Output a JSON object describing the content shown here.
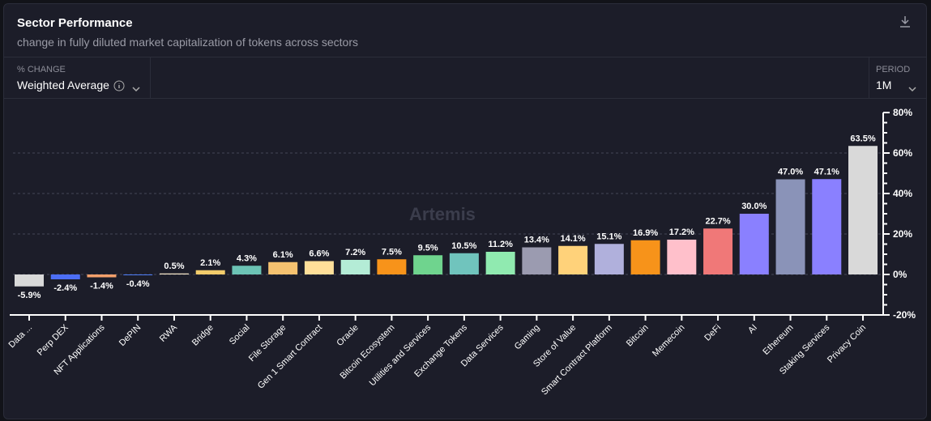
{
  "header": {
    "title": "Sector Performance",
    "subtitle": "change in fully diluted market capitalization of tokens across sectors",
    "download_icon": "download-icon"
  },
  "controls": {
    "change": {
      "label": "% CHANGE",
      "value": "Weighted Average"
    },
    "period": {
      "label": "PERIOD",
      "value": "1M"
    }
  },
  "watermark": "Artemis",
  "chart_data": {
    "type": "bar",
    "title": "",
    "xlabel": "",
    "ylabel": "",
    "ylim": [
      -20,
      80
    ],
    "yticks": [
      -20,
      0,
      20,
      40,
      60,
      80
    ],
    "ytick_labels": [
      "-20%",
      "0%",
      "20%",
      "40%",
      "60%",
      "80%"
    ],
    "grid": true,
    "categories": [
      "Data ...",
      "Perp DEX",
      "NFT Applications",
      "DePIN",
      "RWA",
      "Bridge",
      "Social",
      "File Storage",
      "Gen 1 Smart Contract",
      "Oracle",
      "Bitcoin Ecosystem",
      "Utilities and Services",
      "Exchange Tokens",
      "Data Services",
      "Gaming",
      "Store of Value",
      "Smart Contract Platform",
      "Bitcoin",
      "Memecoin",
      "DeFi",
      "AI",
      "Ethereum",
      "Staking Services",
      "Privacy Coin"
    ],
    "values": [
      -5.9,
      -2.4,
      -1.4,
      -0.4,
      0.5,
      2.1,
      4.3,
      6.1,
      6.6,
      7.2,
      7.5,
      9.5,
      10.5,
      11.2,
      13.4,
      14.1,
      15.1,
      16.9,
      17.2,
      22.7,
      30.0,
      47.0,
      47.1,
      63.5
    ],
    "labels": [
      "-5.9%",
      "-2.4%",
      "-1.4%",
      "-0.4%",
      "0.5%",
      "2.1%",
      "4.3%",
      "6.1%",
      "6.6%",
      "7.2%",
      "7.5%",
      "9.5%",
      "10.5%",
      "11.2%",
      "13.4%",
      "14.1%",
      "15.1%",
      "16.9%",
      "17.2%",
      "22.7%",
      "30.0%",
      "47.0%",
      "47.1%",
      "63.5%"
    ],
    "colors": [
      "#d9d9d9",
      "#4c6ef5",
      "#f4a06b",
      "#4c7cf5",
      "#f5e6c8",
      "#f2cc6b",
      "#6cc3b5",
      "#f5c270",
      "#ffdf99",
      "#b4ecd6",
      "#f7931a",
      "#6fd48e",
      "#70c4bd",
      "#90eab0",
      "#9b9bb0",
      "#ffd27a",
      "#b0b0dc",
      "#f7931a",
      "#ffc0cb",
      "#f07878",
      "#8a80ff",
      "#8a93b8",
      "#8a80ff",
      "#d9d9d9"
    ]
  }
}
